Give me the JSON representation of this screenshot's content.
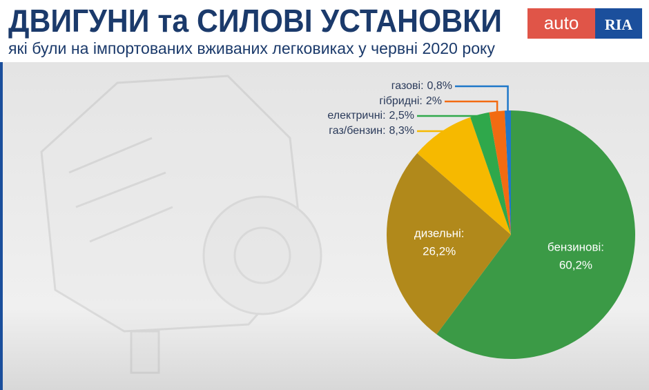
{
  "logo": {
    "left": "auto",
    "right": "RIA"
  },
  "chart_data": {
    "type": "pie",
    "title": "ДВИГУНИ та СИЛОВІ УСТАНОВКИ",
    "subtitle": "які були на імпортованих вживаних легковиках у червні 2020 року",
    "categories": [
      "бензинові:",
      "дизельні:",
      "газ/бензин:",
      "електричні:",
      "гібридні:",
      "газові:"
    ],
    "values": [
      60.2,
      26.2,
      8.3,
      2.5,
      2,
      0.8
    ],
    "value_labels": [
      "60,2%",
      "26,2%",
      "8,3%",
      "2,5%",
      "2%",
      "0,8%"
    ],
    "colors": [
      "#3b9a46",
      "#b1891b",
      "#f6b900",
      "#2fa84b",
      "#f26b12",
      "#1e77c9"
    ]
  }
}
